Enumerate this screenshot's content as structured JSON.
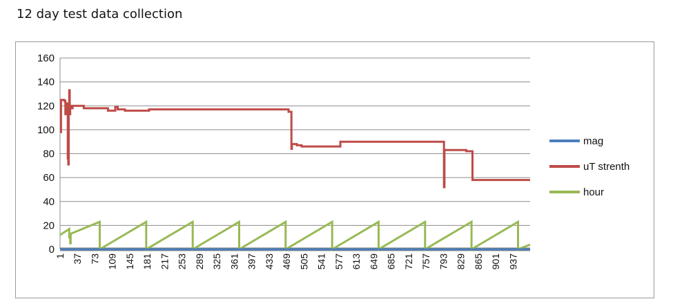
{
  "page": {
    "title": "12 day test data collection"
  },
  "chart_data": {
    "type": "line",
    "title": "",
    "xlabel": "",
    "ylabel": "",
    "ylim": [
      0,
      160
    ],
    "yticks": [
      0,
      20,
      40,
      60,
      80,
      100,
      120,
      140,
      160
    ],
    "xlim": [
      1,
      972
    ],
    "xtick_labels": [
      "1",
      "37",
      "73",
      "109",
      "145",
      "181",
      "217",
      "253",
      "289",
      "325",
      "361",
      "397",
      "433",
      "469",
      "505",
      "541",
      "577",
      "613",
      "649",
      "685",
      "721",
      "757",
      "793",
      "829",
      "865",
      "901",
      "937"
    ],
    "grid": true,
    "legend": "right",
    "colors": {
      "mag": "#4a7ebb",
      "uT strenth": "#be4b48",
      "hour": "#98b954",
      "axis_band": "#808080"
    },
    "series": [
      {
        "name": "mag",
        "points": [
          [
            1,
            0
          ],
          [
            972,
            0
          ]
        ]
      },
      {
        "name": "uT strenth",
        "points": [
          [
            1,
            98
          ],
          [
            3,
            98
          ],
          [
            3,
            125
          ],
          [
            10,
            125
          ],
          [
            10,
            124
          ],
          [
            12,
            124
          ],
          [
            12,
            113
          ],
          [
            14,
            113
          ],
          [
            14,
            122
          ],
          [
            16,
            122
          ],
          [
            16,
            113
          ],
          [
            17,
            113
          ],
          [
            17,
            76
          ],
          [
            18,
            76
          ],
          [
            18,
            71
          ],
          [
            19,
            71
          ],
          [
            19,
            122
          ],
          [
            20,
            122
          ],
          [
            20,
            133
          ],
          [
            21,
            133
          ],
          [
            21,
            113
          ],
          [
            22,
            113
          ],
          [
            22,
            120
          ],
          [
            24,
            120
          ],
          [
            24,
            118
          ],
          [
            27,
            118
          ],
          [
            27,
            120
          ],
          [
            50,
            120
          ],
          [
            50,
            118
          ],
          [
            100,
            118
          ],
          [
            100,
            116
          ],
          [
            115,
            116
          ],
          [
            115,
            119
          ],
          [
            120,
            119
          ],
          [
            120,
            117
          ],
          [
            135,
            117
          ],
          [
            135,
            116
          ],
          [
            185,
            116
          ],
          [
            185,
            117
          ],
          [
            473,
            117
          ],
          [
            473,
            115
          ],
          [
            479,
            115
          ],
          [
            479,
            84
          ],
          [
            480,
            84
          ],
          [
            480,
            88
          ],
          [
            490,
            88
          ],
          [
            490,
            87
          ],
          [
            500,
            87
          ],
          [
            500,
            86
          ],
          [
            580,
            86
          ],
          [
            580,
            90
          ],
          [
            794,
            90
          ],
          [
            794,
            52
          ],
          [
            795,
            52
          ],
          [
            795,
            83
          ],
          [
            840,
            83
          ],
          [
            840,
            82
          ],
          [
            853,
            82
          ],
          [
            853,
            58
          ],
          [
            972,
            58
          ]
        ]
      },
      {
        "name": "hour",
        "points": [
          [
            1,
            12
          ],
          [
            20,
            17
          ],
          [
            20,
            10
          ],
          [
            22,
            10
          ],
          [
            22,
            5
          ],
          [
            23,
            5
          ],
          [
            23,
            13
          ],
          [
            83,
            23
          ],
          [
            83,
            0
          ],
          [
            179,
            23
          ],
          [
            179,
            0
          ],
          [
            275,
            23
          ],
          [
            275,
            0
          ],
          [
            371,
            23
          ],
          [
            371,
            0
          ],
          [
            467,
            23
          ],
          [
            467,
            0
          ],
          [
            563,
            23
          ],
          [
            563,
            0
          ],
          [
            659,
            23
          ],
          [
            659,
            0
          ],
          [
            755,
            23
          ],
          [
            755,
            0
          ],
          [
            851,
            23
          ],
          [
            851,
            0
          ],
          [
            947,
            23
          ],
          [
            947,
            0
          ],
          [
            972,
            4
          ]
        ]
      }
    ]
  }
}
